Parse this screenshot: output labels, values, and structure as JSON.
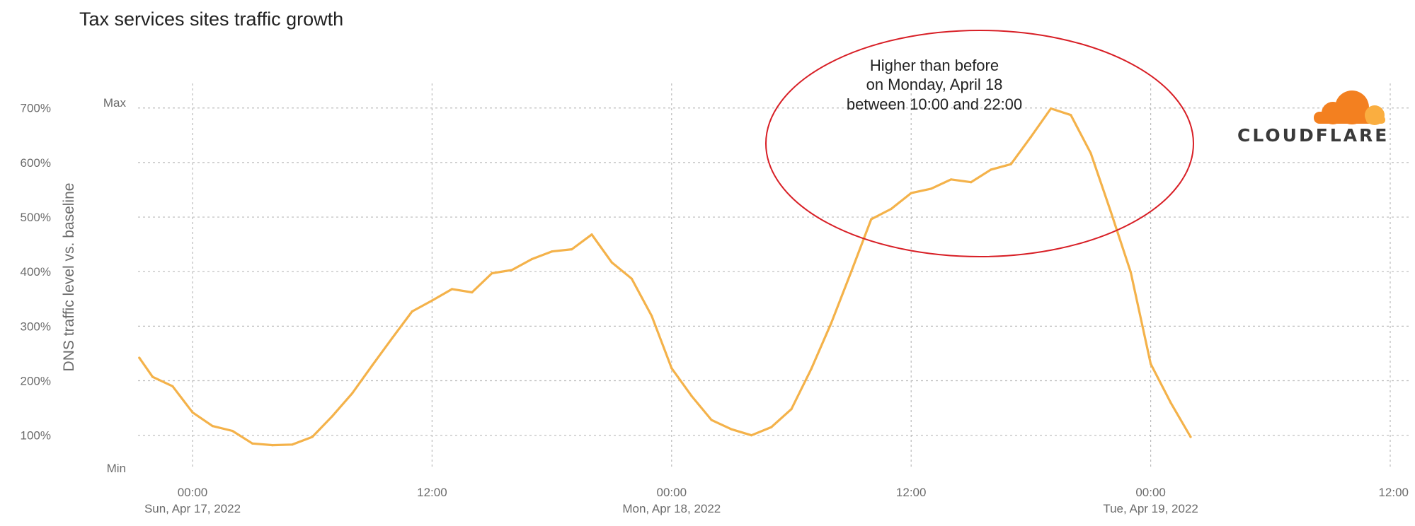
{
  "title": "Tax services sites traffic growth",
  "logo_text": "CLOUDFLARE",
  "colors": {
    "line": "#f4b24a",
    "annotation": "#d81f26",
    "grid": "#bbbbbb",
    "logo_orange": "#f38020",
    "logo_light": "#faae40"
  },
  "chart_data": {
    "type": "line",
    "title": "Tax services sites traffic growth",
    "ylabel": "DNS traffic level vs. baseline",
    "xlabel": "",
    "y_ticks": [
      "100%",
      "200%",
      "300%",
      "400%",
      "500%",
      "600%",
      "700%"
    ],
    "y_range_labels": {
      "max": "Max",
      "min": "Min"
    },
    "ylim": [
      40,
      710
    ],
    "x_ticks": [
      {
        "hours": 0,
        "time": "00:00",
        "date": "Sun, Apr 17, 2022"
      },
      {
        "hours": 12,
        "time": "12:00",
        "date": ""
      },
      {
        "hours": 24,
        "time": "00:00",
        "date": "Mon, Apr 18, 2022"
      },
      {
        "hours": 36,
        "time": "12:00",
        "date": ""
      },
      {
        "hours": 48,
        "time": "00:00",
        "date": "Tue, Apr 19, 2022"
      },
      {
        "hours": 60,
        "time": "12:00",
        "date": ""
      }
    ],
    "grid": true,
    "series": [
      {
        "x": [
          "Apr 16 21:20",
          "Apr 16 22:00",
          "Apr 16 23:00",
          "Apr 17 00:00",
          "Apr 17 01:00",
          "Apr 17 02:00",
          "Apr 17 03:00",
          "Apr 17 04:00",
          "Apr 17 05:00",
          "Apr 17 06:00",
          "Apr 17 07:00",
          "Apr 17 08:00",
          "Apr 17 09:00",
          "Apr 17 10:00",
          "Apr 17 11:00",
          "Apr 17 12:00",
          "Apr 17 13:00",
          "Apr 17 14:00",
          "Apr 17 15:00",
          "Apr 17 16:00",
          "Apr 17 17:00",
          "Apr 17 18:00",
          "Apr 17 19:00",
          "Apr 17 20:00",
          "Apr 17 21:00",
          "Apr 17 22:00",
          "Apr 17 23:00",
          "Apr 18 00:00",
          "Apr 18 01:00",
          "Apr 18 02:00",
          "Apr 18 03:00",
          "Apr 18 04:00",
          "Apr 18 05:00",
          "Apr 18 06:00",
          "Apr 18 07:00",
          "Apr 18 08:00",
          "Apr 18 09:00",
          "Apr 18 10:00",
          "Apr 18 11:00",
          "Apr 18 12:00",
          "Apr 18 13:00",
          "Apr 18 14:00",
          "Apr 18 15:00",
          "Apr 18 16:00",
          "Apr 18 17:00",
          "Apr 18 18:00",
          "Apr 18 19:00",
          "Apr 18 20:00",
          "Apr 18 21:00",
          "Apr 18 22:00",
          "Apr 18 23:00",
          "Apr 19 00:00",
          "Apr 19 01:00",
          "Apr 19 02:00"
        ],
        "values": [
          242,
          207,
          190,
          142,
          117,
          108,
          85,
          82,
          83,
          97,
          135,
          177,
          228,
          278,
          327,
          347,
          368,
          362,
          397,
          403,
          423,
          437,
          441,
          468,
          417,
          387,
          319,
          223,
          172,
          128,
          111,
          100,
          115,
          148,
          222,
          306,
          400,
          496,
          515,
          544,
          552,
          569,
          564,
          587,
          597,
          647,
          699,
          687,
          617,
          510,
          399,
          231,
          160,
          97
        ]
      }
    ],
    "annotations": [
      {
        "type": "ellipse",
        "text": [
          "Higher than before",
          "on Monday, April 18",
          "between 10:00 and 22:00"
        ]
      }
    ]
  }
}
